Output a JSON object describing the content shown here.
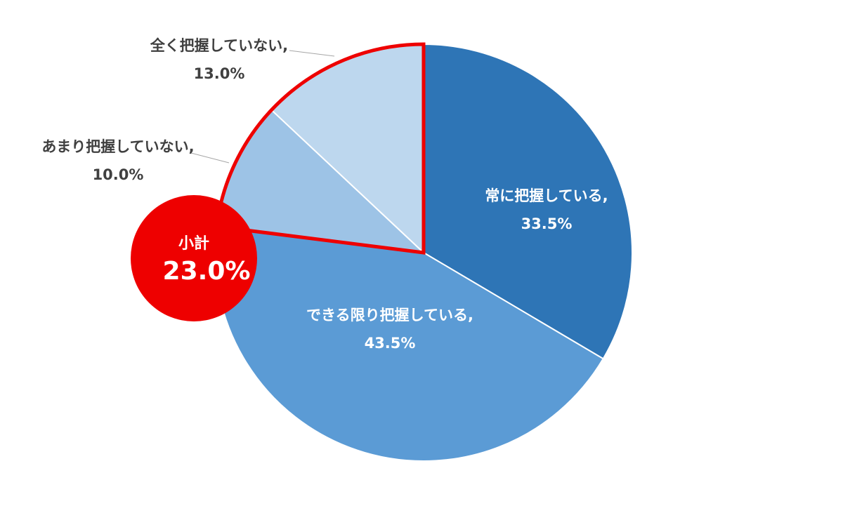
{
  "chart_data": {
    "type": "pie",
    "categories": [
      "常に把握している,",
      "できる限り把握している,",
      "あまり把握していない,",
      "全く把握していない,"
    ],
    "values": [
      33.5,
      43.5,
      10.0,
      13.0
    ],
    "value_labels": [
      "33.5%",
      "43.5%",
      "10.0%",
      "13.0%"
    ],
    "colors": [
      "#2e75b6",
      "#5b9bd5",
      "#9dc3e6",
      "#bdd7ee"
    ],
    "subtotal": {
      "label": "小計",
      "value": 23.0,
      "value_label": "23.0%",
      "color": "#ee0000"
    }
  }
}
